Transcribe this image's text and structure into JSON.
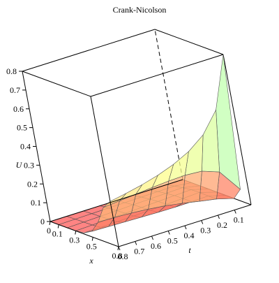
{
  "chart_data": {
    "type": "surface",
    "title": "Crank-Nicolson",
    "xlabel": "x",
    "ylabel": "t",
    "zlabel": "U",
    "x_ticks": [
      "0",
      "0.1",
      "0.3",
      "0.5",
      "0.8"
    ],
    "t_ticks": [
      "0.8",
      "0.7",
      "0.6",
      "0.5",
      "0.4",
      "0.3",
      "0.2",
      "0.1"
    ],
    "u_ticks": [
      "0",
      "0.1",
      "0.2",
      "0.3",
      "0.4",
      "0.5",
      "0.6",
      "0.7",
      "0.8"
    ],
    "xlim": [
      0,
      0.8
    ],
    "tlim": [
      0,
      0.8
    ],
    "ulim": [
      0,
      0.8
    ],
    "grid": false,
    "box": true,
    "colormap": [
      "#ff5a5a",
      "#ffff8c",
      "#7fffd4",
      "#8c8cff"
    ],
    "x": [
      0,
      0.1,
      0.2,
      0.3,
      0.4,
      0.5,
      0.6,
      0.7,
      0.8
    ],
    "t": [
      0,
      0.1,
      0.2,
      0.3,
      0.4,
      0.5,
      0.6,
      0.7,
      0.8
    ]
  }
}
